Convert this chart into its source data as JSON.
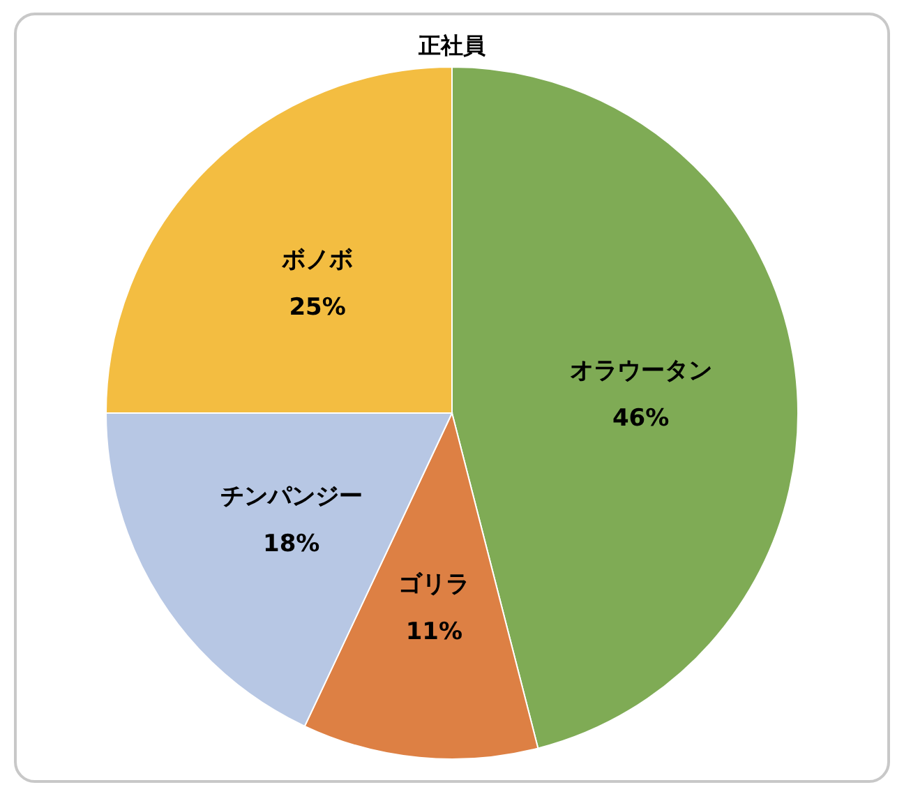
{
  "chart_data": {
    "type": "pie",
    "title": "正社員",
    "categories": [
      "オラウータン",
      "ゴリラ",
      "チンパンジー",
      "ボノボ"
    ],
    "values": [
      46,
      11,
      18,
      25
    ],
    "colors": [
      "#7fab55",
      "#dd8044",
      "#b7c7e4",
      "#f3bd41"
    ],
    "value_labels": [
      "46%",
      "11%",
      "18%",
      "25%"
    ],
    "legend": false
  }
}
